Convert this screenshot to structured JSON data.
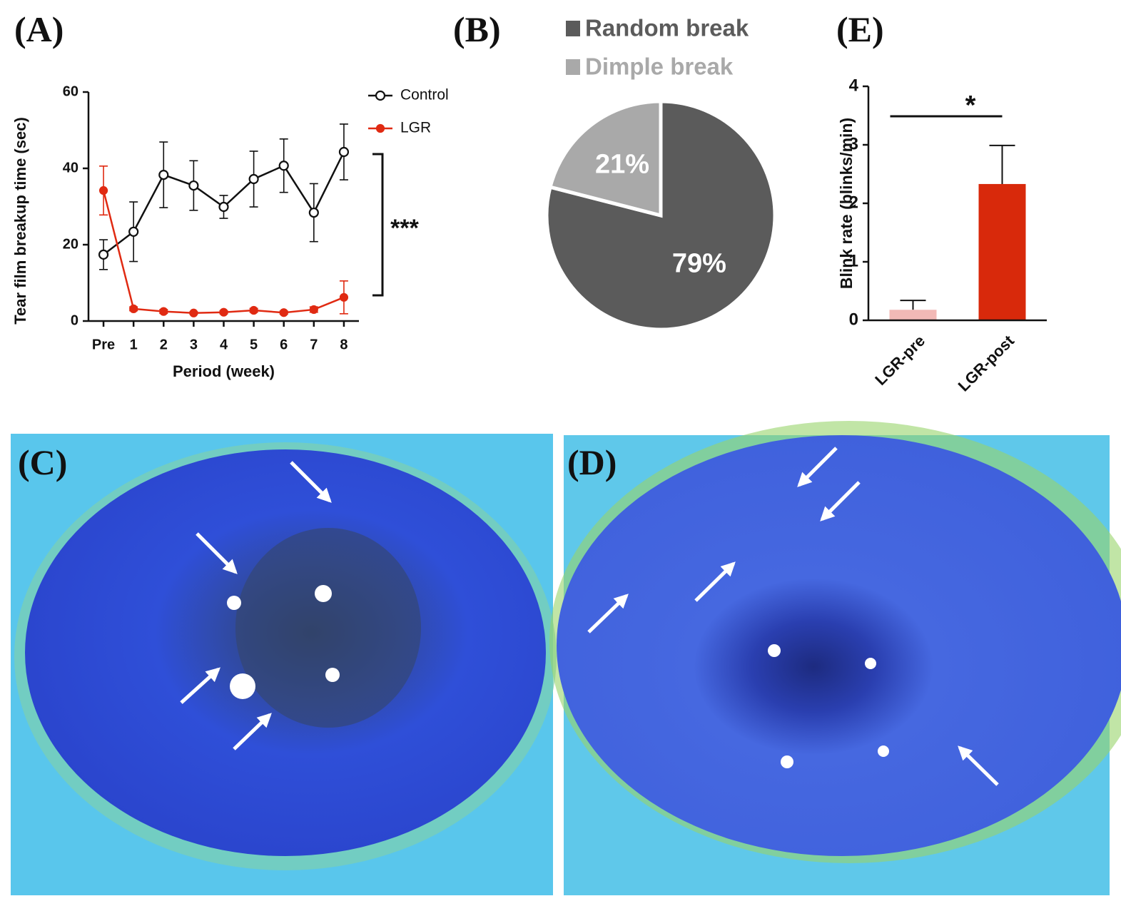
{
  "chart_data": [
    {
      "type": "line",
      "label": "(A)",
      "ylabel": "Tear film breakup time (sec)",
      "xlabel": "Period (week)",
      "categories": [
        "Pre",
        "1",
        "2",
        "3",
        "4",
        "5",
        "6",
        "7",
        "8"
      ],
      "ylim": [
        0,
        60
      ],
      "yticks": [
        0,
        20,
        40,
        60
      ],
      "legend": "upper right",
      "annotation": "***",
      "series": [
        {
          "name": "Control",
          "color": "#111111",
          "filled": false,
          "values": [
            17.4,
            23.4,
            38.3,
            35.5,
            29.9,
            37.2,
            40.7,
            28.4,
            44.3
          ],
          "errors": [
            3.9,
            7.8,
            8.6,
            6.5,
            3.0,
            7.3,
            7.0,
            7.6,
            7.3
          ]
        },
        {
          "name": "LGR",
          "color": "#e02a12",
          "filled": true,
          "values": [
            34.2,
            3.2,
            2.5,
            2.1,
            2.3,
            2.8,
            2.2,
            3.0,
            6.2
          ],
          "errors": [
            6.4,
            0.5,
            0.5,
            0.3,
            0.4,
            0.5,
            0.4,
            0.7,
            4.3
          ]
        }
      ]
    },
    {
      "type": "pie",
      "label": "(B)",
      "categories": [
        "Random break",
        "Dimple break"
      ],
      "values": [
        79,
        21
      ],
      "value_labels": [
        "79%",
        "21%"
      ],
      "colors": [
        "#5b5b5b",
        "#a9a9a9"
      ]
    },
    {
      "type": "bar",
      "label": "(E)",
      "ylabel": "Blink rate (blinks/min)",
      "categories": [
        "LGR-pre",
        "LGR-post"
      ],
      "values": [
        0.18,
        2.33
      ],
      "errors": [
        0.16,
        0.66
      ],
      "colors": [
        "#f2b9b6",
        "#d8290b"
      ],
      "ylim": [
        0,
        4
      ],
      "yticks": [
        0,
        1,
        2,
        3,
        4
      ],
      "annotation": "*"
    }
  ],
  "images": [
    {
      "label": "(C)"
    },
    {
      "label": "(D)"
    }
  ]
}
